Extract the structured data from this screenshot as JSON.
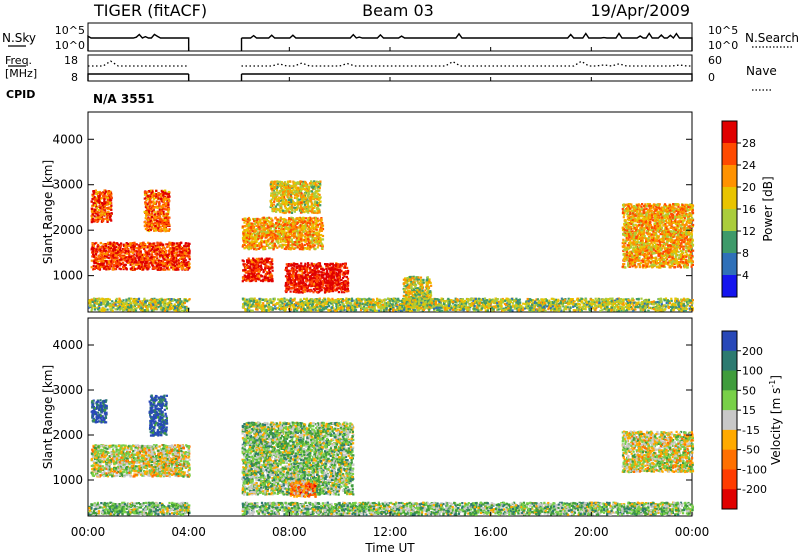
{
  "header": {
    "site": "TIGER (fitACF)",
    "beam": "Beam 03",
    "date": "19/Apr/2009"
  },
  "top_panels": {
    "nsky_label": "N.Sky",
    "nsky_ticks": [
      "10^5",
      "10^0"
    ],
    "nsearch_label": "N.Search",
    "nsearch_ticks": [
      "10^5",
      "10^0"
    ],
    "freq_label_line1": "Freq.",
    "freq_label_line2": "[MHz]",
    "freq_ticks": [
      "18",
      "8"
    ],
    "nave_label": "Nave",
    "nave_ticks": [
      "60",
      "0"
    ],
    "cpid_label": "CPID",
    "cpid_value": "N/A 3551"
  },
  "chart_data": [
    {
      "type": "heatmap",
      "title": "Power",
      "ylabel": "Slant Range [km]",
      "xlabel": "Time UT",
      "x_unit": "hours UT",
      "xlim": [
        0,
        24
      ],
      "ylim": [
        200,
        4600
      ],
      "x_tick_labels": [
        "00:00",
        "04:00",
        "08:00",
        "12:00",
        "16:00",
        "20:00",
        "00:00"
      ],
      "x_tick_values": [
        0,
        4,
        8,
        12,
        16,
        20,
        24
      ],
      "y_tick_values": [
        1000,
        2000,
        3000,
        4000
      ],
      "colorbar_label": "Power [dB]",
      "colorbar_ticks": [
        "28",
        "24",
        "20",
        "16",
        "12",
        "8",
        "4"
      ],
      "colorbar_colors": [
        "#e00000",
        "#ff4a00",
        "#ff9200",
        "#e8c400",
        "#aacd3c",
        "#3e9a6a",
        "#2f70b8",
        "#1515ee"
      ],
      "data_gaps_hours": [
        [
          4.0,
          6.1
        ]
      ],
      "regions": [
        {
          "t0": 0.1,
          "t1": 4.0,
          "r0": 1150,
          "r1": 1750,
          "level": 0.85
        },
        {
          "t0": 0.1,
          "t1": 0.9,
          "r0": 2200,
          "r1": 2900,
          "level": 0.8
        },
        {
          "t0": 2.2,
          "t1": 3.2,
          "r0": 2000,
          "r1": 2900,
          "level": 0.8
        },
        {
          "t0": 6.1,
          "t1": 9.3,
          "r0": 1600,
          "r1": 2300,
          "level": 0.65
        },
        {
          "t0": 6.1,
          "t1": 7.3,
          "r0": 900,
          "r1": 1400,
          "level": 0.9
        },
        {
          "t0": 7.8,
          "t1": 10.3,
          "r0": 650,
          "r1": 1300,
          "level": 0.95
        },
        {
          "t0": 7.2,
          "t1": 9.2,
          "r0": 2400,
          "r1": 3100,
          "level": 0.55
        },
        {
          "t0": 12.5,
          "t1": 13.6,
          "r0": 300,
          "r1": 1000,
          "level": 0.5
        },
        {
          "t0": 21.2,
          "t1": 24.0,
          "r0": 1200,
          "r1": 2600,
          "level": 0.65
        },
        {
          "t0": 0.0,
          "t1": 24.0,
          "r0": 250,
          "r1": 520,
          "level": 0.45
        }
      ]
    },
    {
      "type": "heatmap",
      "title": "Velocity",
      "ylabel": "Slant Range [km]",
      "xlabel": "Time UT",
      "x_unit": "hours UT",
      "xlim": [
        0,
        24
      ],
      "ylim": [
        200,
        4600
      ],
      "x_tick_labels": [
        "00:00",
        "04:00",
        "08:00",
        "12:00",
        "16:00",
        "20:00",
        "00:00"
      ],
      "x_tick_values": [
        0,
        4,
        8,
        12,
        16,
        20,
        24
      ],
      "y_tick_values": [
        1000,
        2000,
        3000,
        4000
      ],
      "colorbar_label": "Velocity [m s^-1]",
      "colorbar_ticks": [
        "200",
        "100",
        "50",
        "15",
        "-15",
        "-50",
        "-100",
        "-200"
      ],
      "colorbar_colors": [
        "#2848b8",
        "#2c7a70",
        "#3f9c3c",
        "#78d048",
        "#c8c8c8",
        "#ffaa00",
        "#ff7000",
        "#ff3c00",
        "#e00000"
      ],
      "data_gaps_hours": [
        [
          4.0,
          6.1
        ]
      ],
      "regions": [
        {
          "t0": 0.1,
          "t1": 4.0,
          "r0": 1100,
          "r1": 1800,
          "level": 0.5
        },
        {
          "t0": 0.1,
          "t1": 0.7,
          "r0": 2300,
          "r1": 2800,
          "level": 0.95
        },
        {
          "t0": 2.4,
          "t1": 3.1,
          "r0": 2000,
          "r1": 2900,
          "level": 0.95
        },
        {
          "t0": 6.1,
          "t1": 10.5,
          "r0": 700,
          "r1": 2300,
          "level": 0.6
        },
        {
          "t0": 8.0,
          "t1": 9.0,
          "r0": 650,
          "r1": 1000,
          "level": 0.3
        },
        {
          "t0": 21.2,
          "t1": 24.0,
          "r0": 1200,
          "r1": 2100,
          "level": 0.5
        },
        {
          "t0": 0.0,
          "t1": 24.0,
          "r0": 250,
          "r1": 520,
          "level": 0.62
        }
      ]
    }
  ]
}
